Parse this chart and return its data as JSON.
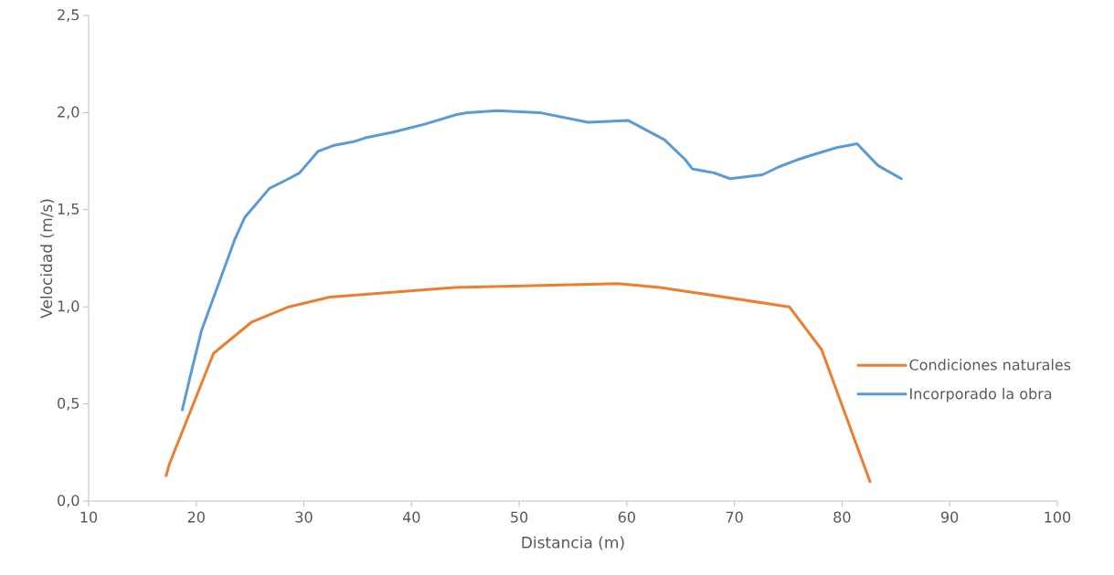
{
  "chart_data": {
    "type": "line",
    "xlabel": "Distancia (m)",
    "ylabel": "Velocidad (m/s)",
    "xlim": [
      10,
      100
    ],
    "xticks": [
      10,
      20,
      30,
      40,
      50,
      60,
      70,
      80,
      90,
      100
    ],
    "ylim": [
      0,
      2.5
    ],
    "yticks": [
      {
        "value": 0,
        "label": "0,0"
      },
      {
        "value": 0.5,
        "label": "0,5"
      },
      {
        "value": 1,
        "label": "1,0"
      },
      {
        "value": 1.5,
        "label": "1,5"
      },
      {
        "value": 2,
        "label": "2,0"
      },
      {
        "value": 2.5,
        "label": "2,5"
      }
    ],
    "grid": false,
    "legend": "right",
    "marker": "none",
    "line_style": "solid",
    "series": [
      {
        "name": "Condiciones naturales",
        "color": "#ed7d31",
        "x": [
          17.2,
          17.5,
          21.6,
          25.1,
          28.6,
          32.4,
          44.0,
          59.2,
          63.1,
          75.1,
          78.1,
          82.6
        ],
        "values": [
          0.13,
          0.19,
          0.76,
          0.92,
          1.0,
          1.05,
          1.1,
          1.12,
          1.1,
          1.0,
          0.78,
          0.1
        ]
      },
      {
        "name": "Incorporado la obra",
        "color": "#5b9bd5",
        "x": [
          18.7,
          19.6,
          20.5,
          23.6,
          24.5,
          26.8,
          28.6,
          29.6,
          31.3,
          32.7,
          34.6,
          35.7,
          38.3,
          41.2,
          44.2,
          45.2,
          48.0,
          51.9,
          56.4,
          60.1,
          60.8,
          63.5,
          65.4,
          66.1,
          68.1,
          69.6,
          72.6,
          74.1,
          75.5,
          76.0,
          77.1,
          79.5,
          81.4,
          83.3,
          83.9,
          85.5
        ],
        "values": [
          0.47,
          0.68,
          0.88,
          1.35,
          1.46,
          1.61,
          1.66,
          1.69,
          1.8,
          1.83,
          1.85,
          1.87,
          1.9,
          1.94,
          1.99,
          2.0,
          2.01,
          2.0,
          1.95,
          1.96,
          1.94,
          1.86,
          1.76,
          1.71,
          1.69,
          1.66,
          1.68,
          1.72,
          1.75,
          1.76,
          1.78,
          1.82,
          1.84,
          1.73,
          1.71,
          1.66
        ]
      }
    ]
  }
}
